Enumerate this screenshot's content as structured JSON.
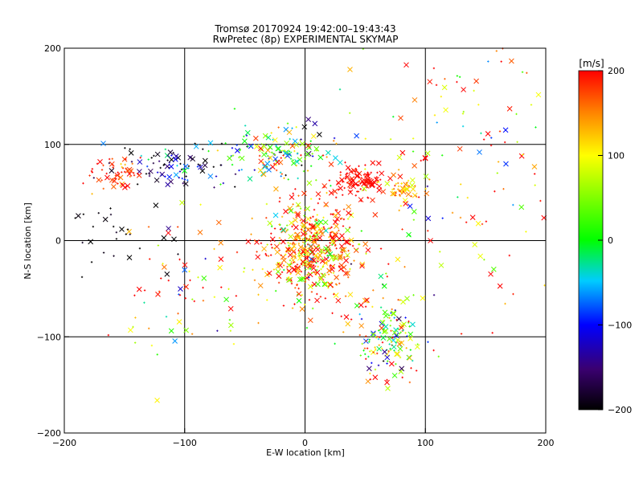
{
  "chart_data": {
    "type": "scatter",
    "title": "Tromsø 20170924 19:42:00–19:43:43",
    "subtitle": "RwPretec (8p) EXPERIMENTAL SKYMAP",
    "xlabel": "E-W location [km]",
    "ylabel": "N-S location [km]",
    "xlim": [
      -200,
      200
    ],
    "ylim": [
      -200,
      200
    ],
    "xticks": [
      -200,
      -100,
      0,
      100,
      200
    ],
    "yticks": [
      -200,
      -100,
      0,
      100,
      200
    ],
    "grid": true,
    "markers": [
      "x",
      "+"
    ],
    "colorbar": {
      "label": "[m/s]",
      "range": [
        -200,
        200
      ],
      "ticks": [
        200,
        100,
        0,
        -100,
        -200
      ],
      "colormap": "rainbow (black → purple → blue → cyan → green → yellow → red)"
    },
    "clusters": [
      {
        "center": [
          5,
          -10
        ],
        "spread": [
          22,
          25
        ],
        "velocity_mean": 150,
        "velocity_sd": 80
      },
      {
        "center": [
          -110,
          75
        ],
        "spread": [
          25,
          12
        ],
        "velocity_mean": -150,
        "velocity_sd": 80
      },
      {
        "center": [
          -155,
          70
        ],
        "spread": [
          10,
          10
        ],
        "velocity_mean": 180,
        "velocity_sd": 30
      },
      {
        "center": [
          45,
          62
        ],
        "spread": [
          10,
          8
        ],
        "velocity_mean": 200,
        "velocity_sd": 10
      },
      {
        "center": [
          80,
          55
        ],
        "spread": [
          6,
          5
        ],
        "velocity_mean": 130,
        "velocity_sd": 30
      },
      {
        "center": [
          -25,
          90
        ],
        "spread": [
          25,
          15
        ],
        "velocity_mean": 0,
        "velocity_sd": 110
      },
      {
        "center": [
          70,
          -100
        ],
        "spread": [
          15,
          25
        ],
        "velocity_mean": 60,
        "velocity_sd": 120
      },
      {
        "center": [
          -100,
          -60
        ],
        "spread": [
          30,
          40
        ],
        "velocity_mean": 150,
        "velocity_sd": 120
      },
      {
        "center": [
          120,
          80
        ],
        "spread": [
          60,
          70
        ],
        "velocity_mean": 120,
        "velocity_sd": 110
      },
      {
        "center": [
          -160,
          0
        ],
        "spread": [
          25,
          25
        ],
        "velocity_mean": -200,
        "velocity_sd": 10
      }
    ]
  }
}
